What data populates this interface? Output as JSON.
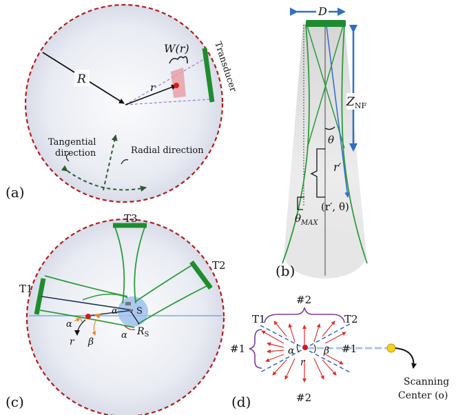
{
  "colors": {
    "boundary": "#b01c1c",
    "transducer": "#1e8c2e",
    "beam": "#2a9a3a",
    "dim_arrow": "#2f6fc4",
    "accent_orange": "#e8862a",
    "point": "#d61b1b",
    "focus_disk": "#9dc1ec",
    "purple": "#7b3a9e",
    "ray": "#3a6fc9",
    "scan_center": "#f2d21a"
  },
  "panel_a": {
    "label": "(a)",
    "radius_label": "R",
    "window_label": "W(r)",
    "r_label": "r",
    "transducer_label": "Transducer",
    "tangential_label_1": "Tangential",
    "tangential_label_2": "direction",
    "radial_label": "Radial direction"
  },
  "panel_b": {
    "label": "(b)",
    "d_label": "D",
    "znf_label": "Z",
    "znf_sub": "NF",
    "theta_label": "θ",
    "rprime_label": "r′",
    "point_label": "(r′, θ)",
    "theta_max_label": "θ",
    "theta_max_sub": "MAX"
  },
  "panel_c": {
    "label": "(c)",
    "t1": "T1",
    "t2": "T2",
    "t3": "T3",
    "s_label": "S",
    "rs_label": "R",
    "rs_sub": "S",
    "alpha_1": "α",
    "alpha_2": "α",
    "alpha_3": "α",
    "r_label": "r",
    "beta_label": "β"
  },
  "panel_d": {
    "label": "(d)",
    "top_label": "#2",
    "bottom_label": "#2",
    "left_label": "#1",
    "right_label": "#1",
    "t1": "T1",
    "t2": "T2",
    "alpha": "α",
    "beta": "β",
    "r_label": "r",
    "scan_label_1": "Scanning",
    "scan_label_2": "Center (o)"
  }
}
